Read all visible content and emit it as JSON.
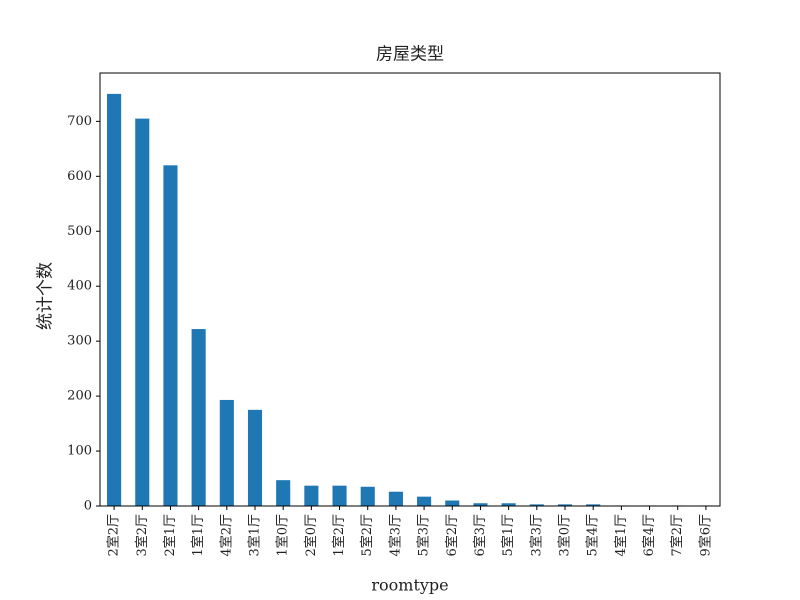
{
  "chart_data": {
    "type": "bar",
    "title": "房屋类型",
    "x_label": "roomtype",
    "y_label": "统计个数",
    "categories": [
      "2室2厅",
      "3室2厅",
      "2室1厅",
      "1室1厅",
      "4室2厅",
      "3室1厅",
      "1室0厅",
      "2室0厅",
      "1室2厅",
      "5室2厅",
      "4室3厅",
      "5室3厅",
      "6室2厅",
      "6室3厅",
      "5室1厅",
      "3室3厅",
      "3室0厅",
      "5室4厅",
      "4室1厅",
      "6室4厅",
      "7室2厅",
      "9室6厅"
    ],
    "values": [
      750,
      705,
      620,
      322,
      193,
      175,
      47,
      37,
      37,
      35,
      26,
      17,
      10,
      5,
      5,
      3,
      3,
      3,
      1,
      1,
      1,
      1
    ],
    "color": "#1f77b4",
    "ylim": [
      0,
      788
    ],
    "yticks": [
      0,
      100,
      200,
      300,
      400,
      500,
      600,
      700
    ],
    "grid": false
  }
}
